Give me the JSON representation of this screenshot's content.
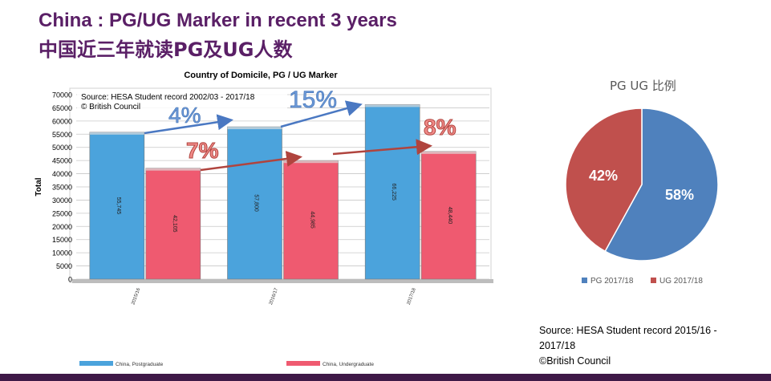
{
  "slide": {
    "title_en": "China : PG/UG Marker in recent 3 years",
    "title_zh": "中国近三年就读PG及UG人数"
  },
  "chart_data": [
    {
      "type": "bar",
      "title": "Country of Domicile, PG / UG Marker",
      "ylabel": "Total",
      "xlabel": "",
      "ylim": [
        0,
        70000
      ],
      "yticks": [
        0,
        5000,
        10000,
        15000,
        20000,
        25000,
        30000,
        35000,
        40000,
        45000,
        50000,
        55000,
        60000,
        65000,
        70000
      ],
      "categories": [
        "2015/16",
        "2016/17",
        "2017/18"
      ],
      "series": [
        {
          "name": "China, Postgraduate",
          "values": [
            55745,
            57800,
            66225
          ],
          "labels": [
            "55,745",
            "57,800",
            "66,225"
          ],
          "color": "#4ba3dc"
        },
        {
          "name": "China, Undergraduate",
          "values": [
            42105,
            44985,
            48440
          ],
          "labels": [
            "42,105",
            "44,985",
            "48,440"
          ],
          "color": "#ef5a70"
        }
      ],
      "source_note": [
        "Source: HESA Student record 2002/03 - 2017/18",
        "© British Council"
      ],
      "annotations": [
        {
          "text": "4%",
          "color": "#5b8fd1"
        },
        {
          "text": "15%",
          "color": "#5b8fd1"
        },
        {
          "text": "7%",
          "color": "#e0605f"
        },
        {
          "text": "8%",
          "color": "#e0605f"
        }
      ],
      "grid": true,
      "legend": "bottom"
    },
    {
      "type": "pie",
      "title": "PG UG 比例",
      "categories": [
        "PG 2017/18",
        "UG 2017/18"
      ],
      "values": [
        58,
        42
      ],
      "labels": [
        "58%",
        "42%"
      ],
      "colors": [
        "#4f81bd",
        "#c0504d"
      ],
      "legend": "bottom"
    }
  ],
  "source_block": {
    "line1": "Source: HESA Student record 2015/16 -",
    "line2": "2017/18",
    "line3": "©British Council"
  }
}
